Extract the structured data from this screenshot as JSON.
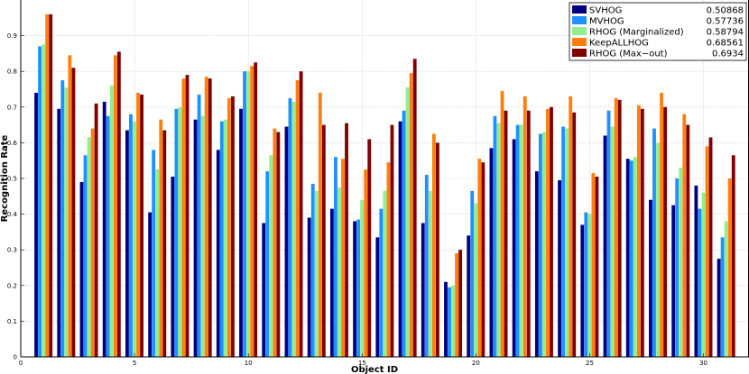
{
  "chart_data": {
    "type": "bar",
    "xlabel": "Object ID",
    "ylabel": "Recognition Rate",
    "xlim": [
      0,
      32
    ],
    "ylim": [
      0,
      1
    ],
    "x_ticks": [
      0,
      5,
      10,
      15,
      20,
      25,
      30
    ],
    "y_ticks": [
      0,
      0.1,
      0.2,
      0.3,
      0.4,
      0.5,
      0.6,
      0.7,
      0.8,
      0.9
    ],
    "grid": true,
    "legend_position": "top-right",
    "categories": [
      1,
      2,
      3,
      4,
      5,
      6,
      7,
      8,
      9,
      10,
      11,
      12,
      13,
      14,
      15,
      16,
      17,
      18,
      19,
      20,
      21,
      22,
      23,
      24,
      25,
      26,
      27,
      28,
      29,
      30,
      31
    ],
    "series": [
      {
        "name": "SVHOG",
        "score": "0.50868",
        "color": "#000080",
        "values": [
          0.74,
          0.695,
          0.49,
          0.715,
          0.635,
          0.405,
          0.505,
          0.665,
          0.58,
          0.695,
          0.375,
          0.645,
          0.39,
          0.415,
          0.38,
          0.335,
          0.66,
          0.375,
          0.21,
          0.34,
          0.585,
          0.61,
          0.52,
          0.495,
          0.37,
          0.62,
          0.555,
          0.44,
          0.425,
          0.48,
          0.275
        ]
      },
      {
        "name": "MVHOG",
        "score": "0.57736",
        "color": "#1e90ff",
        "values": [
          0.87,
          0.775,
          0.565,
          0.675,
          0.68,
          0.58,
          0.695,
          0.735,
          0.66,
          0.8,
          0.52,
          0.725,
          0.485,
          0.56,
          0.385,
          0.415,
          0.69,
          0.51,
          0.195,
          0.465,
          0.675,
          0.65,
          0.625,
          0.645,
          0.405,
          0.69,
          0.55,
          0.64,
          0.5,
          0.415,
          0.335
        ]
      },
      {
        "name": "RHOG (Marginalized)",
        "score": "0.58794",
        "color": "#90ee90",
        "values": [
          0.875,
          0.755,
          0.615,
          0.76,
          0.66,
          0.525,
          0.7,
          0.675,
          0.665,
          0.8,
          0.565,
          0.715,
          0.465,
          0.475,
          0.44,
          0.465,
          0.755,
          0.465,
          0.2,
          0.43,
          0.655,
          0.65,
          0.63,
          0.64,
          0.4,
          0.645,
          0.56,
          0.6,
          0.53,
          0.46,
          0.38
        ]
      },
      {
        "name": "KeepALLHOG",
        "score": "0.68561",
        "color": "#ff7f0e",
        "values": [
          0.96,
          0.845,
          0.64,
          0.845,
          0.74,
          0.665,
          0.78,
          0.785,
          0.725,
          0.815,
          0.64,
          0.775,
          0.74,
          0.555,
          0.525,
          0.545,
          0.795,
          0.625,
          0.29,
          0.555,
          0.745,
          0.73,
          0.695,
          0.73,
          0.515,
          0.725,
          0.705,
          0.74,
          0.68,
          0.59,
          0.5
        ]
      },
      {
        "name": "RHOG (Max−out)",
        "score": "0.6934",
        "color": "#800000",
        "values": [
          0.96,
          0.81,
          0.71,
          0.855,
          0.735,
          0.635,
          0.79,
          0.78,
          0.73,
          0.825,
          0.63,
          0.8,
          0.65,
          0.655,
          0.61,
          0.65,
          0.835,
          0.6,
          0.3,
          0.545,
          0.69,
          0.69,
          0.7,
          0.685,
          0.505,
          0.72,
          0.695,
          0.7,
          0.65,
          0.615,
          0.565
        ]
      }
    ]
  }
}
